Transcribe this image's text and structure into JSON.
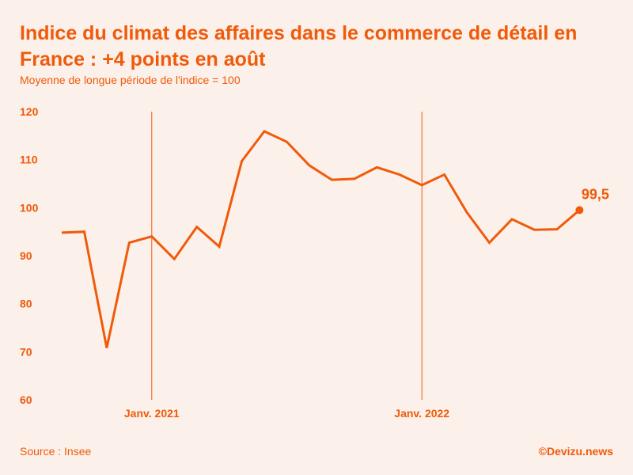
{
  "chart_data": {
    "type": "line",
    "title": "Indice du climat des affaires dans le commerce de détail en France : +4 points en août",
    "subtitle": "Moyenne de longue période de l'indice = 100",
    "source": "Source : Insee",
    "credit": "©Devizu.news",
    "xlabel": "",
    "ylabel": "",
    "ylim": [
      60,
      120
    ],
    "yticks": [
      60,
      70,
      80,
      90,
      100,
      110,
      120
    ],
    "x_tick_labels": [
      {
        "label": "Janv. 2021",
        "index": 4
      },
      {
        "label": "Janv. 2022",
        "index": 16
      }
    ],
    "series": [
      {
        "values": [
          94.8,
          95.0,
          70.8,
          92.7,
          94.0,
          89.3,
          96.0,
          91.9,
          109.7,
          115.9,
          113.7,
          108.8,
          105.8,
          106.0,
          108.4,
          106.9,
          104.7,
          106.9,
          99.0,
          92.7,
          97.6,
          95.4,
          95.5,
          99.5
        ]
      }
    ],
    "last_value_label": "99,5",
    "grid": false,
    "colors": {
      "line": "#f05a0a",
      "text": "#f05a0a",
      "background": "#fbf0ea"
    }
  }
}
